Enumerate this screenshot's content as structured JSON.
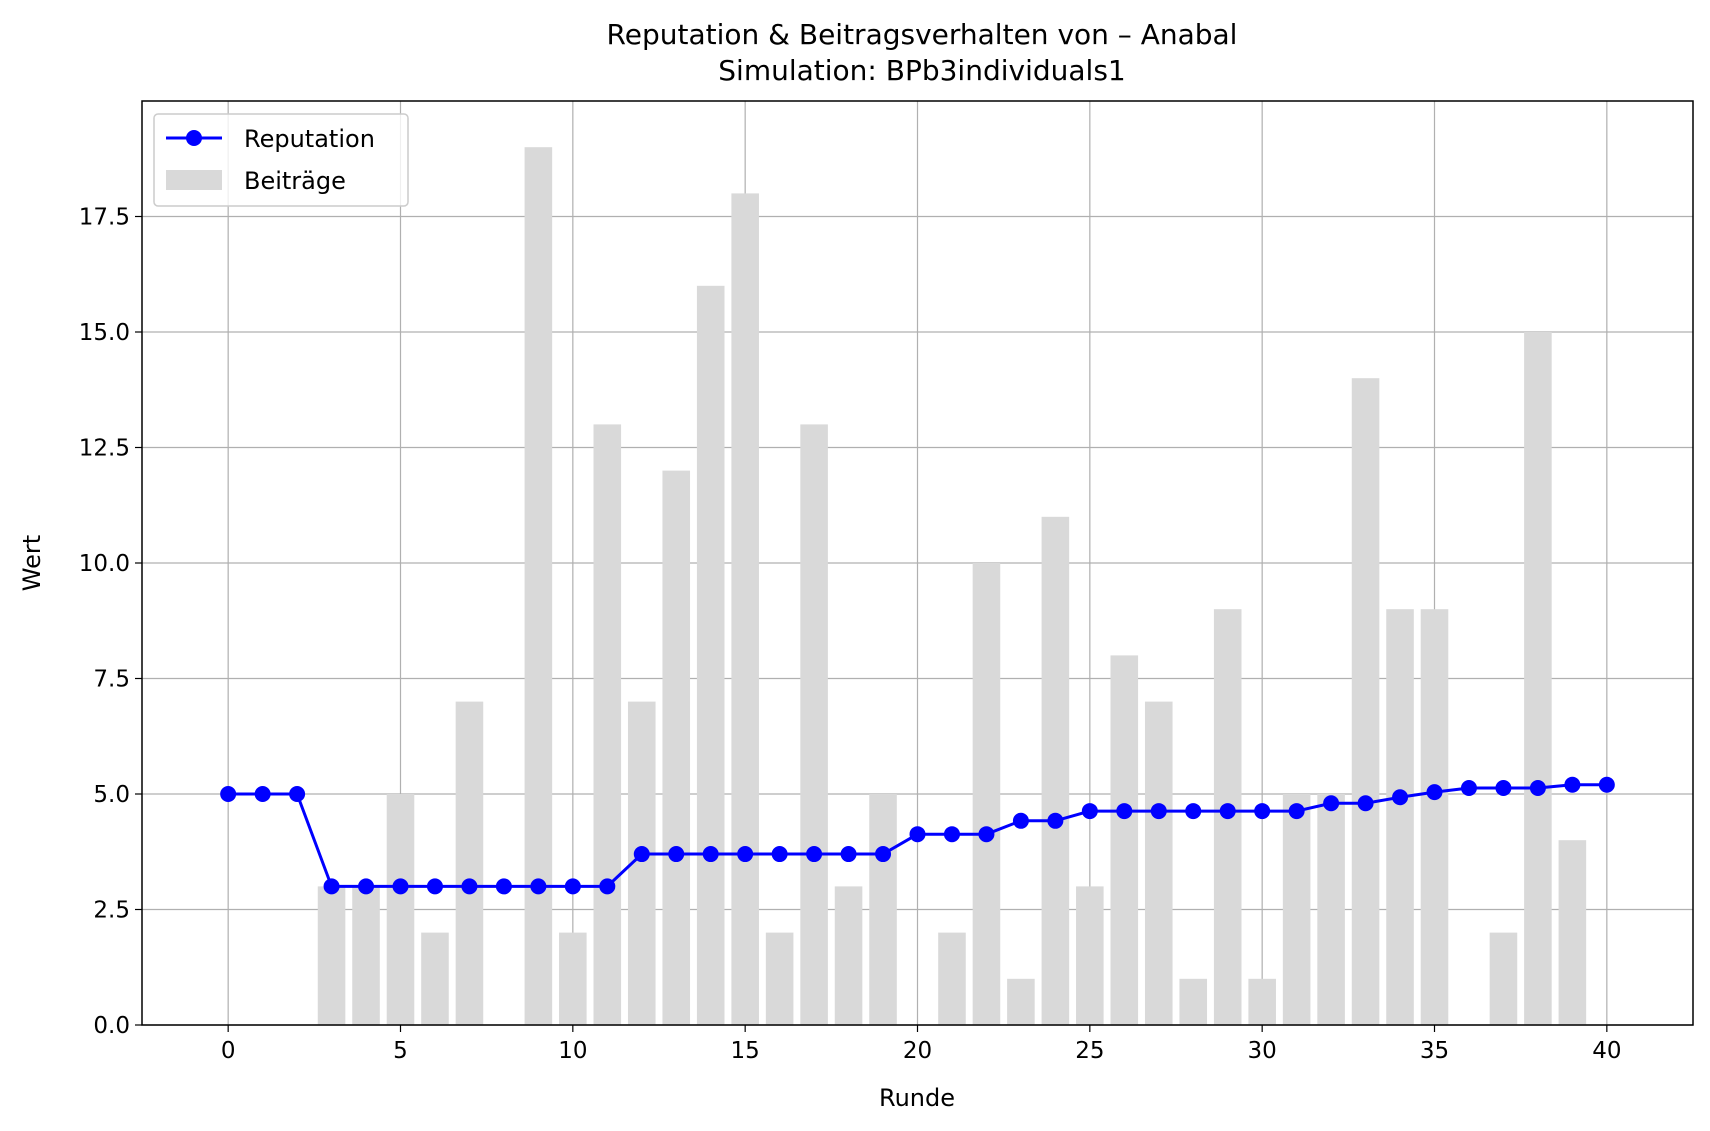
{
  "chart_data": {
    "type": "bar",
    "title": "Reputation & Beitragsverhalten von – Anabal",
    "subtitle": "Simulation: BPb3individuals1",
    "xlabel": "Runde",
    "ylabel": "Wert",
    "xlim": [
      -2.5,
      42.5
    ],
    "ylim": [
      0,
      20
    ],
    "x_ticks": [
      0,
      5,
      10,
      15,
      20,
      25,
      30,
      35,
      40
    ],
    "y_ticks": [
      0,
      2.5,
      5,
      7.5,
      10,
      12.5,
      15,
      17.5
    ],
    "y_tick_labels": [
      "0.0",
      "2.5",
      "5.0",
      "7.5",
      "10.0",
      "12.5",
      "15.0",
      "17.5"
    ],
    "grid": true,
    "legend_position": "top-left",
    "x": [
      0,
      1,
      2,
      3,
      4,
      5,
      6,
      7,
      8,
      9,
      10,
      11,
      12,
      13,
      14,
      15,
      16,
      17,
      18,
      19,
      20,
      21,
      22,
      23,
      24,
      25,
      26,
      27,
      28,
      29,
      30,
      31,
      32,
      33,
      34,
      35,
      36,
      37,
      38,
      39,
      40
    ],
    "series": [
      {
        "name": "Reputation",
        "type": "line",
        "color": "#0000ff",
        "values": [
          5.0,
          5.0,
          5.0,
          3.0,
          3.0,
          3.0,
          3.0,
          3.0,
          3.0,
          3.0,
          3.0,
          3.0,
          3.7,
          3.7,
          3.7,
          3.7,
          3.7,
          3.7,
          3.7,
          3.7,
          4.13,
          4.13,
          4.13,
          4.42,
          4.42,
          4.63,
          4.63,
          4.63,
          4.63,
          4.63,
          4.63,
          4.63,
          4.8,
          4.8,
          4.93,
          5.04,
          5.13,
          5.13,
          5.13,
          5.2,
          5.2
        ]
      },
      {
        "name": "Beiträge",
        "type": "bar",
        "color": "#d9d9d9",
        "values": [
          0,
          0,
          0,
          3,
          3,
          5,
          2,
          7,
          0,
          19,
          2,
          13,
          7,
          12,
          16,
          18,
          2,
          13,
          3,
          5,
          0,
          2,
          10,
          1,
          11,
          3,
          8,
          7,
          1,
          9,
          1,
          5,
          5,
          14,
          9,
          9,
          0,
          2,
          15,
          4,
          0
        ]
      }
    ]
  }
}
